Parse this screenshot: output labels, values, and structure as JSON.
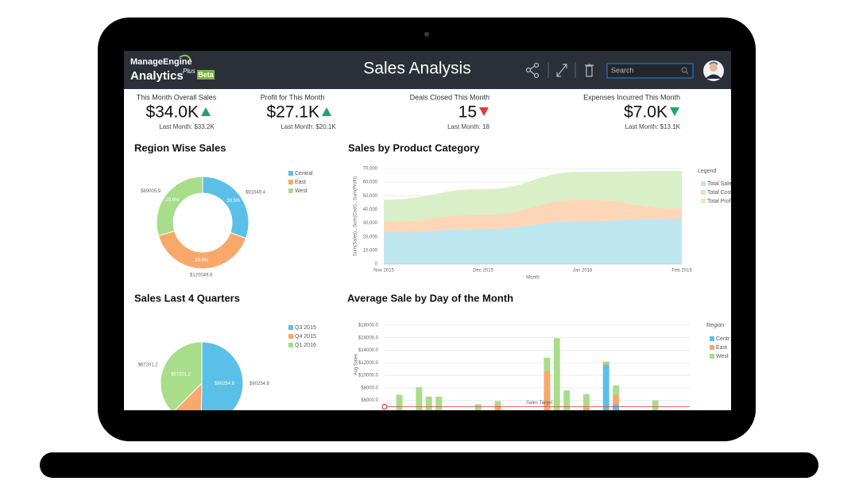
{
  "header": {
    "logo_top": "ManageEngine",
    "logo_main": "Analytics",
    "logo_plus": "Plus",
    "logo_badge": "Beta",
    "title": "Sales Analysis",
    "search_placeholder": "Search"
  },
  "kpis": [
    {
      "label": "This Month Overall Sales",
      "value": "$34.0K",
      "last_month": "Last Month: $33.2K",
      "trend": "up",
      "trend_color": "#1fa463"
    },
    {
      "label": "Profit for This Month",
      "value": "$27.1K",
      "last_month": "Last Month: $20.1K",
      "trend": "up",
      "trend_color": "#1fa463"
    },
    {
      "label": "Deals Closed This Month",
      "value": "15",
      "last_month": "Last Month: 18",
      "trend": "down",
      "trend_color": "#e53935"
    },
    {
      "label": "Expenses Incurred This Month",
      "value": "$7.0K",
      "last_month": "Last Month: $13.1K",
      "trend": "down",
      "trend_color": "#1fa463"
    }
  ],
  "chart_data": [
    {
      "type": "donut",
      "title": "Region Wise Sales",
      "categories": [
        "Central",
        "East",
        "West"
      ],
      "values": [
        91649.4,
        120049.8,
        89005.9
      ],
      "value_labels": [
        "$91649.4",
        "$120049.8",
        "$89005.9"
      ],
      "percent_labels": [
        "30.5%",
        "39.9%",
        "29.6%"
      ],
      "colors": [
        "#5bc0e8",
        "#f9a86b",
        "#a8dd8a"
      ]
    },
    {
      "type": "area",
      "title": "Sales by Product Category",
      "stacked": true,
      "categories": [
        "Nov 2015",
        "Dec 2015",
        "Jan 2016",
        "Feb 2016"
      ],
      "series": [
        {
          "name": "Total Sale",
          "color": "#bde6f0",
          "values": [
            23300,
            25700,
            31500,
            33250
          ]
        },
        {
          "name": "Total Cost",
          "color": "#fdd6b8",
          "values": [
            7600,
            10500,
            15750,
            7500
          ]
        },
        {
          "name": "Total Prof",
          "color": "#d9efc8",
          "values": [
            16300,
            18600,
            20400,
            27450
          ]
        }
      ],
      "ylim": [
        0,
        70000
      ],
      "yticks": [
        0,
        {
          "value": 10000,
          "label": "10,000"
        },
        {
          "value": 20000,
          "label": "20,000"
        },
        {
          "value": 30000,
          "label": "30,000"
        },
        {
          "value": 40000,
          "label": "40,000"
        },
        {
          "value": 50000,
          "label": "50,000"
        },
        {
          "value": 60000,
          "label": "60,000"
        },
        {
          "value": 70000,
          "label": "70,000"
        }
      ],
      "ylabel": "Sum(Sales) , Sum(Cost) , Sum(Profit)",
      "xlabel": "Month",
      "legend_title": "Legend",
      "grid": true
    },
    {
      "type": "pie",
      "title": "Sales Last 4 Quarters",
      "categories": [
        "Q3 2015",
        "Q4 2015",
        "Q1 2016"
      ],
      "values": [
        90254.8,
        22000,
        67201.2
      ],
      "value_labels": [
        "$90254.8",
        null,
        "$67201.2"
      ],
      "colors": [
        "#5bc0e8",
        "#f9a86b",
        "#a8dd8a"
      ]
    },
    {
      "type": "bar",
      "title": "Average Sale by Day of the Month",
      "stacked": true,
      "categories": [
        null,
        null,
        null,
        null,
        null,
        null,
        null,
        null,
        null,
        null,
        null,
        null,
        null,
        null,
        null,
        null,
        null,
        null,
        null,
        null,
        null,
        null,
        null,
        null,
        null,
        null,
        null,
        null,
        null,
        null,
        null
      ],
      "series": [
        {
          "name": "Centr",
          "color": "#5bc0e8",
          "values": [
            1200,
            1300,
            1100,
            1200,
            1300,
            1200,
            1100,
            1000,
            1200,
            1300,
            1100,
            1200,
            1000,
            1100,
            1200,
            1300,
            1200,
            1100,
            1000,
            1200,
            1100,
            1300,
            11700,
            5400,
            1200,
            1100,
            1000,
            1200,
            1100,
            1200,
            1000
          ]
        },
        {
          "name": "East",
          "color": "#f9a86b",
          "values": [
            1500,
            1400,
            1600,
            1500,
            1500,
            1700,
            1400,
            1500,
            1600,
            1400,
            1500,
            4100,
            1500,
            1400,
            1600,
            1500,
            9500,
            1400,
            3300,
            1500,
            3800,
            1500,
            300,
            1500,
            1400,
            1600,
            1500,
            1400,
            1500,
            1600,
            1400
          ]
        },
        {
          "name": "West",
          "color": "#a8dd8a",
          "values": [
            1500,
            4200,
            1600,
            5400,
            3800,
            3700,
            1500,
            1400,
            1600,
            2700,
            1500,
            600,
            1400,
            1500,
            1600,
            1400,
            2100,
            13400,
            3300,
            1400,
            2100,
            1500,
            200,
            1500,
            1400,
            1600,
            1500,
            3400,
            1500,
            1600,
            1400
          ]
        }
      ],
      "ylim": [
        0,
        19000
      ],
      "yticks": [
        {
          "value": 6000,
          "label": "$6000.0"
        },
        {
          "value": 8000,
          "label": "$8000.0"
        },
        {
          "value": 10000,
          "label": "$10000.0"
        },
        {
          "value": 12000,
          "label": "$12000.0"
        },
        {
          "value": 14000,
          "label": "$14000.0"
        },
        {
          "value": 16000,
          "label": "$16000.0"
        },
        {
          "value": 18000,
          "label": "$18000.0"
        }
      ],
      "ylabel": "Avg Sales",
      "legend_title": "Region",
      "grid": true,
      "target": 5000,
      "target_label": "Sales Target",
      "target_color": "#e53935"
    }
  ]
}
